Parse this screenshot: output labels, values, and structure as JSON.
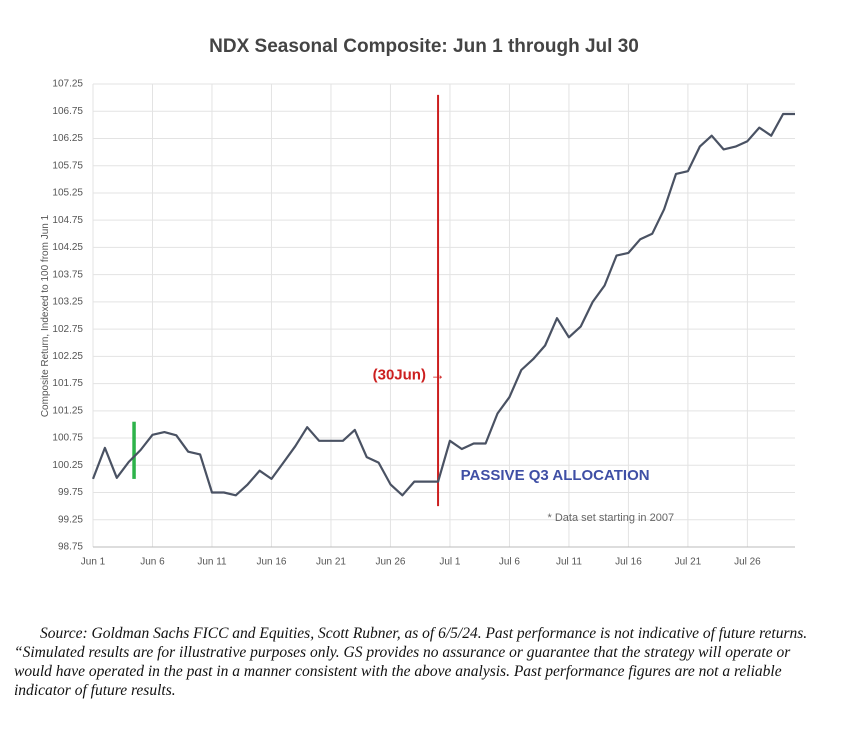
{
  "chart_data": {
    "type": "line",
    "title": "NDX Seasonal Composite: Jun 1 through Jul 30",
    "y_label": "Composite Return, Indexed to 100 from Jun 1",
    "x": [
      0,
      1,
      2,
      3,
      4,
      5,
      6,
      7,
      8,
      9,
      10,
      11,
      12,
      13,
      14,
      15,
      16,
      17,
      18,
      19,
      20,
      21,
      22,
      23,
      24,
      25,
      26,
      27,
      28,
      29,
      30,
      31,
      32,
      33,
      34,
      35,
      36,
      37,
      38,
      39,
      40,
      41,
      42,
      43,
      44,
      45,
      46,
      47,
      48,
      49,
      50,
      51,
      52,
      53,
      54,
      55,
      56,
      57,
      58,
      59
    ],
    "series": [
      {
        "name": "NDX Seasonal Composite",
        "color": "#4a5263",
        "values": [
          100.0,
          100.57,
          100.02,
          100.31,
          100.53,
          100.81,
          100.86,
          100.8,
          100.5,
          100.45,
          99.75,
          99.75,
          99.7,
          99.9,
          100.15,
          100.0,
          100.3,
          100.6,
          100.95,
          100.7,
          100.7,
          100.7,
          100.9,
          100.4,
          100.3,
          99.9,
          99.7,
          99.95,
          99.95,
          99.95,
          100.7,
          100.55,
          100.65,
          100.65,
          101.2,
          101.5,
          102.0,
          102.2,
          102.45,
          102.95,
          102.6,
          102.8,
          103.25,
          103.55,
          104.1,
          104.15,
          104.4,
          104.5,
          104.95,
          105.6,
          105.65,
          106.1,
          106.3,
          106.05,
          106.1,
          106.2,
          106.45,
          106.3,
          106.7,
          106.7
        ]
      }
    ],
    "xlim": [
      0,
      59
    ],
    "xticks": [
      {
        "value": 0,
        "label": "Jun 1"
      },
      {
        "value": 5,
        "label": "Jun 6"
      },
      {
        "value": 10,
        "label": "Jun 11"
      },
      {
        "value": 15,
        "label": "Jun 16"
      },
      {
        "value": 20,
        "label": "Jun 21"
      },
      {
        "value": 25,
        "label": "Jun 26"
      },
      {
        "value": 30,
        "label": "Jul 1"
      },
      {
        "value": 35,
        "label": "Jul 6"
      },
      {
        "value": 40,
        "label": "Jul 11"
      },
      {
        "value": 45,
        "label": "Jul 16"
      },
      {
        "value": 50,
        "label": "Jul 21"
      },
      {
        "value": 55,
        "label": "Jul 26"
      }
    ],
    "ylim": [
      98.75,
      107.25
    ],
    "yticks": [
      98.75,
      99.25,
      99.75,
      100.25,
      100.75,
      101.25,
      101.75,
      102.25,
      102.75,
      103.25,
      103.75,
      104.25,
      104.75,
      105.25,
      105.75,
      106.25,
      106.75,
      107.25
    ],
    "grid": true,
    "vlines": [
      {
        "x": 29,
        "y": [
          99.5,
          107.05
        ],
        "color": "#cc1f1f"
      },
      {
        "x": 3.45,
        "y": [
          100.0,
          101.05
        ],
        "color": "#2db34a"
      }
    ],
    "annotations": [
      {
        "text": "(30Jun) →",
        "x": 23.5,
        "y": 101.9,
        "color": "#cc1f1f"
      },
      {
        "text": "PASSIVE Q3 ALLOCATION",
        "x": 30.9,
        "y": 100.05,
        "color": "#3f4fa5"
      },
      {
        "text": "* Data set starting in 2007",
        "x": 38.2,
        "y": 99.28,
        "color": "#666666"
      }
    ]
  },
  "source": "Source: Goldman Sachs FICC and Equities, Scott Rubner, as of 6/5/24. Past performance is not indicative of future returns. “Simulated results are for illustrative purposes only. GS provides no assurance or guarantee that the strategy will operate or would have operated in the past in a manner consistent with the above analysis. Past performance figures are not a reliable indicator of future results."
}
